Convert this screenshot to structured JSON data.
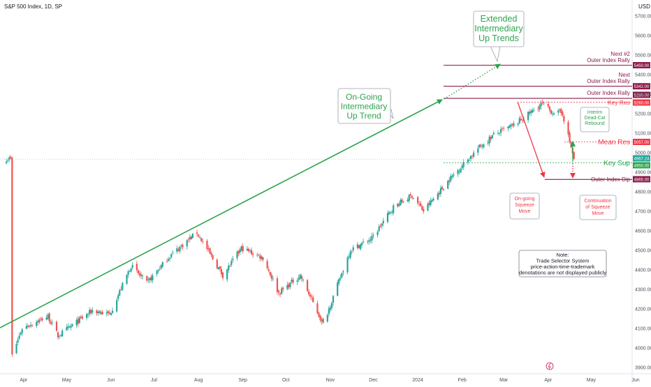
{
  "header": {
    "title": "S&P 500 Index, 1D, SP"
  },
  "axis": {
    "currency": "USD"
  },
  "chart_data": {
    "type": "candlestick",
    "title": "S&P 500 Index, 1D, SP",
    "ylim": [
      3870,
      5820
    ],
    "y_ticks": [
      3900,
      4000,
      4100,
      4200,
      4300,
      4400,
      4500,
      4600,
      4700,
      4800,
      4900,
      5000,
      5100,
      5200,
      5300,
      5400,
      5500,
      5600,
      5700
    ],
    "x_months": [
      "Apr",
      "May",
      "Jun",
      "Jul",
      "Aug",
      "Sep",
      "Oct",
      "Nov",
      "Dec",
      "2024",
      "Feb",
      "Mar",
      "Apr",
      "May",
      "Jun"
    ],
    "current_price": "4967.24",
    "price_anchors": [
      [
        "2023-03-24",
        3960
      ],
      [
        "2023-03-31",
        4100
      ],
      [
        "2023-04-18",
        4160
      ],
      [
        "2023-04-25",
        4060
      ],
      [
        "2023-05-19",
        4190
      ],
      [
        "2023-05-31",
        4170
      ],
      [
        "2023-06-15",
        4420
      ],
      [
        "2023-06-26",
        4330
      ],
      [
        "2023-07-12",
        4470
      ],
      [
        "2023-07-31",
        4590
      ],
      [
        "2023-08-18",
        4370
      ],
      [
        "2023-08-31",
        4510
      ],
      [
        "2023-09-15",
        4460
      ],
      [
        "2023-09-26",
        4280
      ],
      [
        "2023-10-11",
        4370
      ],
      [
        "2023-10-27",
        4120
      ],
      [
        "2023-11-15",
        4500
      ],
      [
        "2023-11-30",
        4560
      ],
      [
        "2023-12-15",
        4720
      ],
      [
        "2023-12-28",
        4780
      ],
      [
        "2024-01-05",
        4700
      ],
      [
        "2024-01-24",
        4870
      ],
      [
        "2024-02-12",
        5020
      ],
      [
        "2024-02-23",
        5090
      ],
      [
        "2024-03-08",
        5140
      ],
      [
        "2024-03-28",
        5250
      ],
      [
        "2024-04-03",
        5210
      ],
      [
        "2024-04-11",
        5200
      ],
      [
        "2024-04-19",
        4967
      ]
    ],
    "levels": [
      {
        "label": "Next #2\nOuter Index Rally",
        "value": "5450.00",
        "color": "#8c1a4b"
      },
      {
        "label": "Next\nOuter Index Rally",
        "value": "5342.00",
        "color": "#8c1a4b"
      },
      {
        "label": "Outer Index Rally",
        "value": "5280.00",
        "color": "#8c1a4b"
      },
      {
        "label": "Key Res",
        "value": "5260.00",
        "color": "#f23645"
      },
      {
        "label": "Mean Res",
        "value": "5057.00",
        "color": "#f23645"
      },
      {
        "label": "Key Sup",
        "value": "4950.00",
        "color": "#2da44e"
      },
      {
        "label": "Outer Index Dip",
        "value": "4865.00",
        "color": "#8c1a4b"
      }
    ],
    "annotations": {
      "extended": "Extended\nIntermediary\nUp Trends",
      "ongoing": "On-Going\nIntermediary\nUp Trend",
      "interim": "Interim\nDead-Cat\nRebound",
      "squeeze": "On-going\nSqueeze\nMove",
      "continuation": "Continuation\nof Squeeze\nMove",
      "note": "Note:\nTrade Selector System\nprice-action-time-trademark\ndenotations are not displayed publicly"
    },
    "colors": {
      "up": "#26a69a",
      "down": "#ef5350",
      "green": "#2da44e",
      "red": "#f23645",
      "maroon": "#8c1a4b"
    }
  }
}
